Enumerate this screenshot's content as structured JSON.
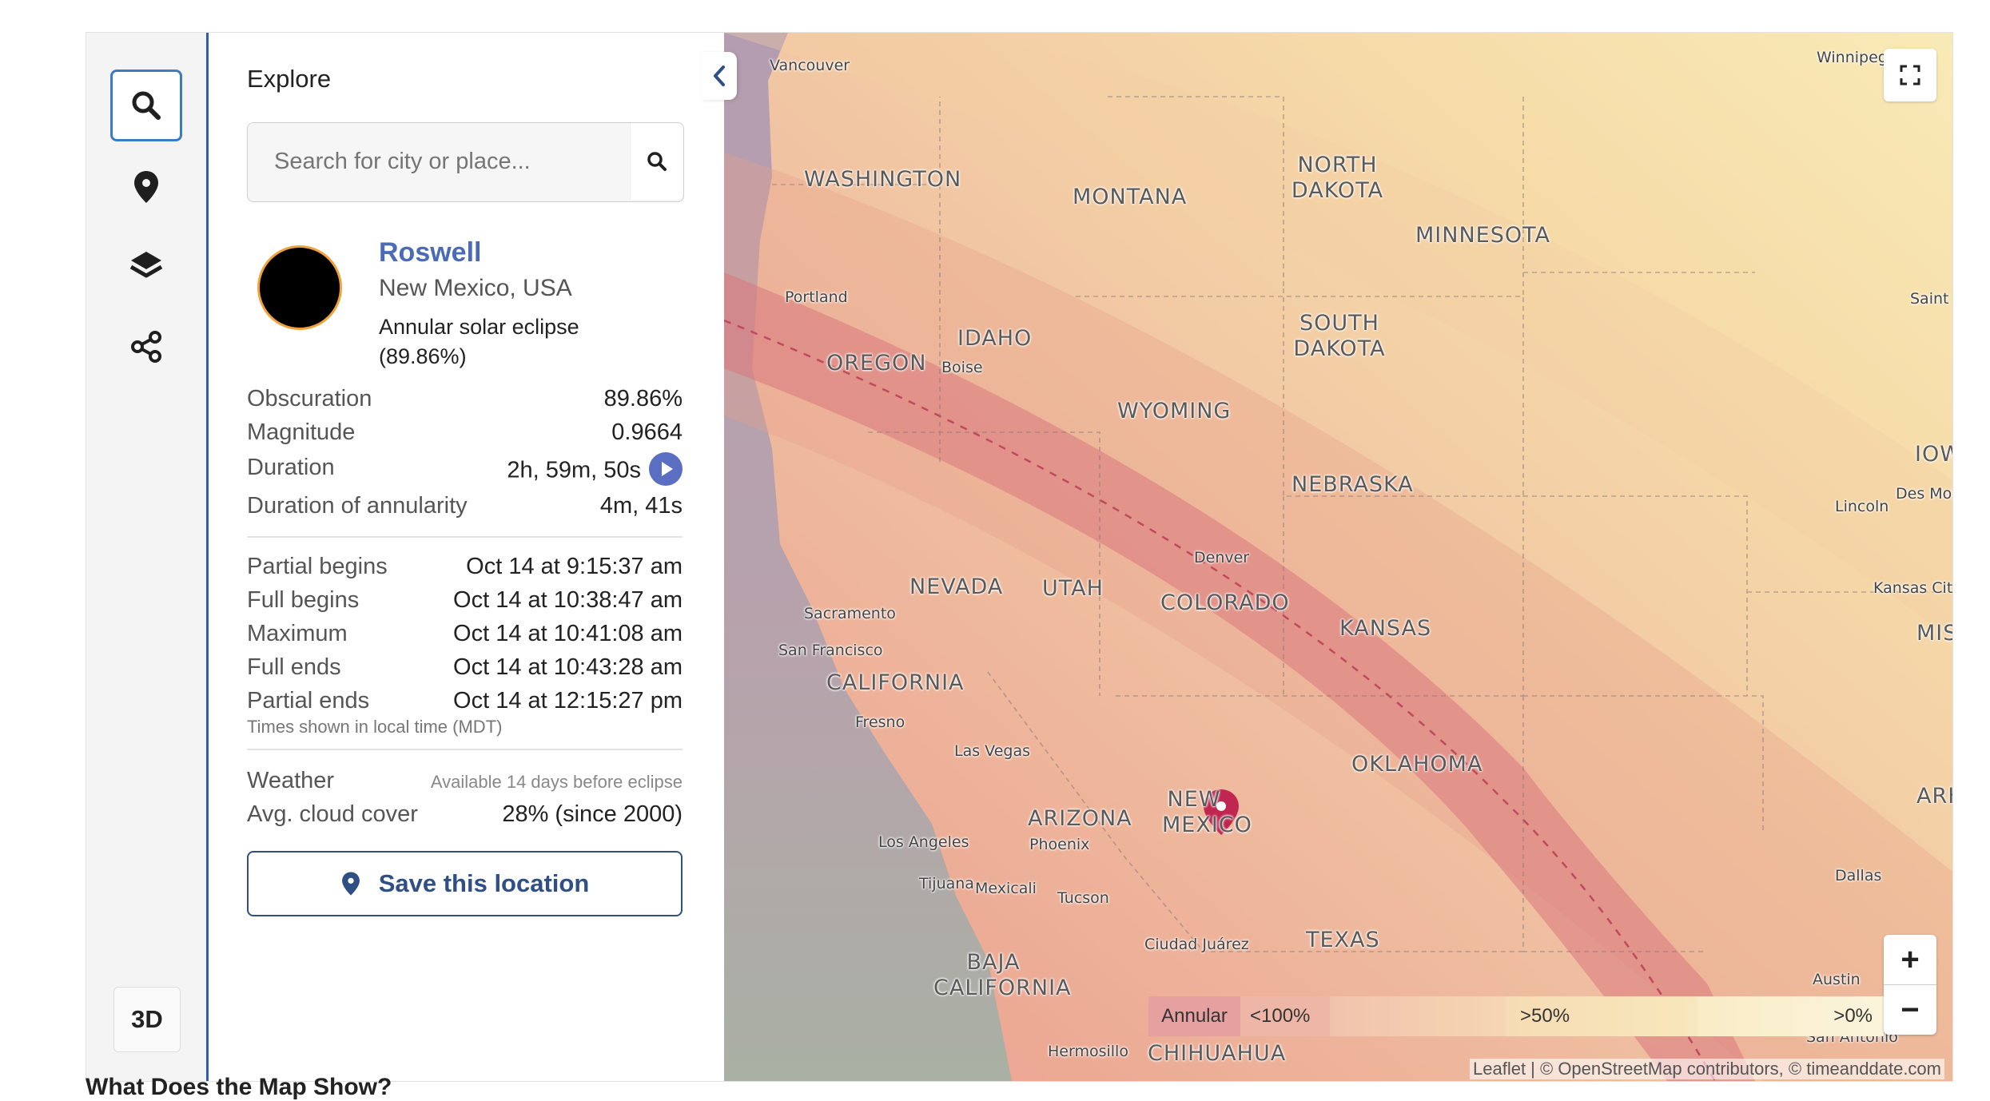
{
  "rail": {
    "buttons": [
      {
        "name": "search-icon",
        "active": true
      },
      {
        "name": "pin-icon",
        "active": false
      },
      {
        "name": "layers-icon",
        "active": false
      },
      {
        "name": "share-icon",
        "active": false
      }
    ],
    "mode_label": "3D"
  },
  "panel": {
    "title": "Explore",
    "search_placeholder": "Search for city or place...",
    "location": {
      "name": "Roswell",
      "region": "New Mexico, USA",
      "eclipse_type": "Annular solar eclipse (89.86%)"
    },
    "stats": [
      {
        "label": "Obscuration",
        "value": "89.86%"
      },
      {
        "label": "Magnitude",
        "value": "0.9664"
      },
      {
        "label": "Duration",
        "value": "2h, 59m, 50s"
      },
      {
        "label": "Duration of annularity",
        "value": "4m, 41s"
      }
    ],
    "times": [
      {
        "label": "Partial begins",
        "value": "Oct 14 at 9:15:37 am"
      },
      {
        "label": "Full begins",
        "value": "Oct 14 at 10:38:47 am"
      },
      {
        "label": "Maximum",
        "value": "Oct 14 at 10:41:08 am"
      },
      {
        "label": "Full ends",
        "value": "Oct 14 at 10:43:28 am"
      },
      {
        "label": "Partial ends",
        "value": "Oct 14 at 12:15:27 pm"
      }
    ],
    "times_note": "Times shown in local time (MDT)",
    "weather": {
      "label": "Weather",
      "note": "Available 14 days before eclipse",
      "cloud_label": "Avg. cloud cover",
      "cloud_value": "28% (since 2000)"
    },
    "save_label": "Save this location"
  },
  "map": {
    "states": [
      {
        "text": "WASHINGTON"
      },
      {
        "text": "MONTANA"
      },
      {
        "text": "NORTH DAKOTA"
      },
      {
        "text": "MINNESOTA"
      },
      {
        "text": "SOUTH DAKOTA"
      },
      {
        "text": "OREGON"
      },
      {
        "text": "IDAHO"
      },
      {
        "text": "WYOMING"
      },
      {
        "text": "IOWA"
      },
      {
        "text": "NEBRASKA"
      },
      {
        "text": "NEVADA"
      },
      {
        "text": "UTAH"
      },
      {
        "text": "COLORADO"
      },
      {
        "text": "KANSAS"
      },
      {
        "text": "MISS"
      },
      {
        "text": "CALIFORNIA"
      },
      {
        "text": "OKLAHOMA"
      },
      {
        "text": "ARK"
      },
      {
        "text": "ARIZONA"
      },
      {
        "text": "NEW MEXICO"
      },
      {
        "text": "TEXAS"
      },
      {
        "text": "BAJA CALIFORNIA"
      },
      {
        "text": "CHIHUAHUA"
      }
    ],
    "cities": [
      {
        "text": "Vancouver"
      },
      {
        "text": "Winnipeg"
      },
      {
        "text": "Portland"
      },
      {
        "text": "Boise"
      },
      {
        "text": "Saint P"
      },
      {
        "text": "Des Moine"
      },
      {
        "text": "Lincoln"
      },
      {
        "text": "Denver"
      },
      {
        "text": "Kansas City"
      },
      {
        "text": "Sacramento"
      },
      {
        "text": "San Francisco"
      },
      {
        "text": "Fresno"
      },
      {
        "text": "Las Vegas"
      },
      {
        "text": "Los Angeles"
      },
      {
        "text": "Phoenix"
      },
      {
        "text": "Tijuana"
      },
      {
        "text": "Mexicali"
      },
      {
        "text": "Tucson"
      },
      {
        "text": "Ciudad Juárez"
      },
      {
        "text": "Dallas"
      },
      {
        "text": "Austin"
      },
      {
        "text": "San Antonio"
      },
      {
        "text": "Hermosillo"
      }
    ],
    "legend": [
      "Annular",
      "<100%",
      ">50%",
      ">0%"
    ],
    "attribution": "Leaflet | © OpenStreetMap contributors, © timeanddate.com",
    "zoom_in": "+",
    "zoom_out": "−"
  },
  "footer_heading": "What Does the Map Show?"
}
